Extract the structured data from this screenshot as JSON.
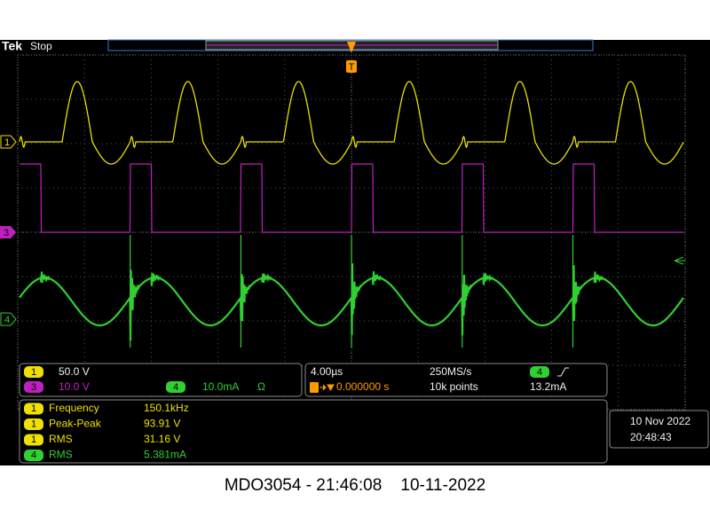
{
  "header": {
    "brand": "Tek",
    "status": "Stop",
    "trigger_marker": "T"
  },
  "channel_markers": [
    "1",
    "3",
    "4"
  ],
  "channel_settings": [
    {
      "channel": "1",
      "scale": "50.0 V"
    },
    {
      "channel": "3",
      "scale": "10.0 V"
    },
    {
      "channel": "4",
      "scale": "10.0mA",
      "termination": "Ω"
    }
  ],
  "timebase": {
    "scale": "4.00µs",
    "sample_rate": "250MS/s",
    "trigger_position": "0.000000 s",
    "record_length": "10k points",
    "trigger_channel": "4",
    "trigger_level": "13.2mA"
  },
  "measurements": [
    {
      "channel": "1",
      "name": "Frequency",
      "value": "150.1kHz"
    },
    {
      "channel": "1",
      "name": "Peak-Peak",
      "value": "93.91 V"
    },
    {
      "channel": "1",
      "name": "RMS",
      "value": "31.16 V"
    },
    {
      "channel": "4",
      "name": "RMS",
      "value": "5.381mA"
    }
  ],
  "datetime": {
    "date": "10 Nov 2022",
    "time": "20:48:43"
  },
  "caption": "MDO3054 - 21:46:08    10-11-2022"
}
